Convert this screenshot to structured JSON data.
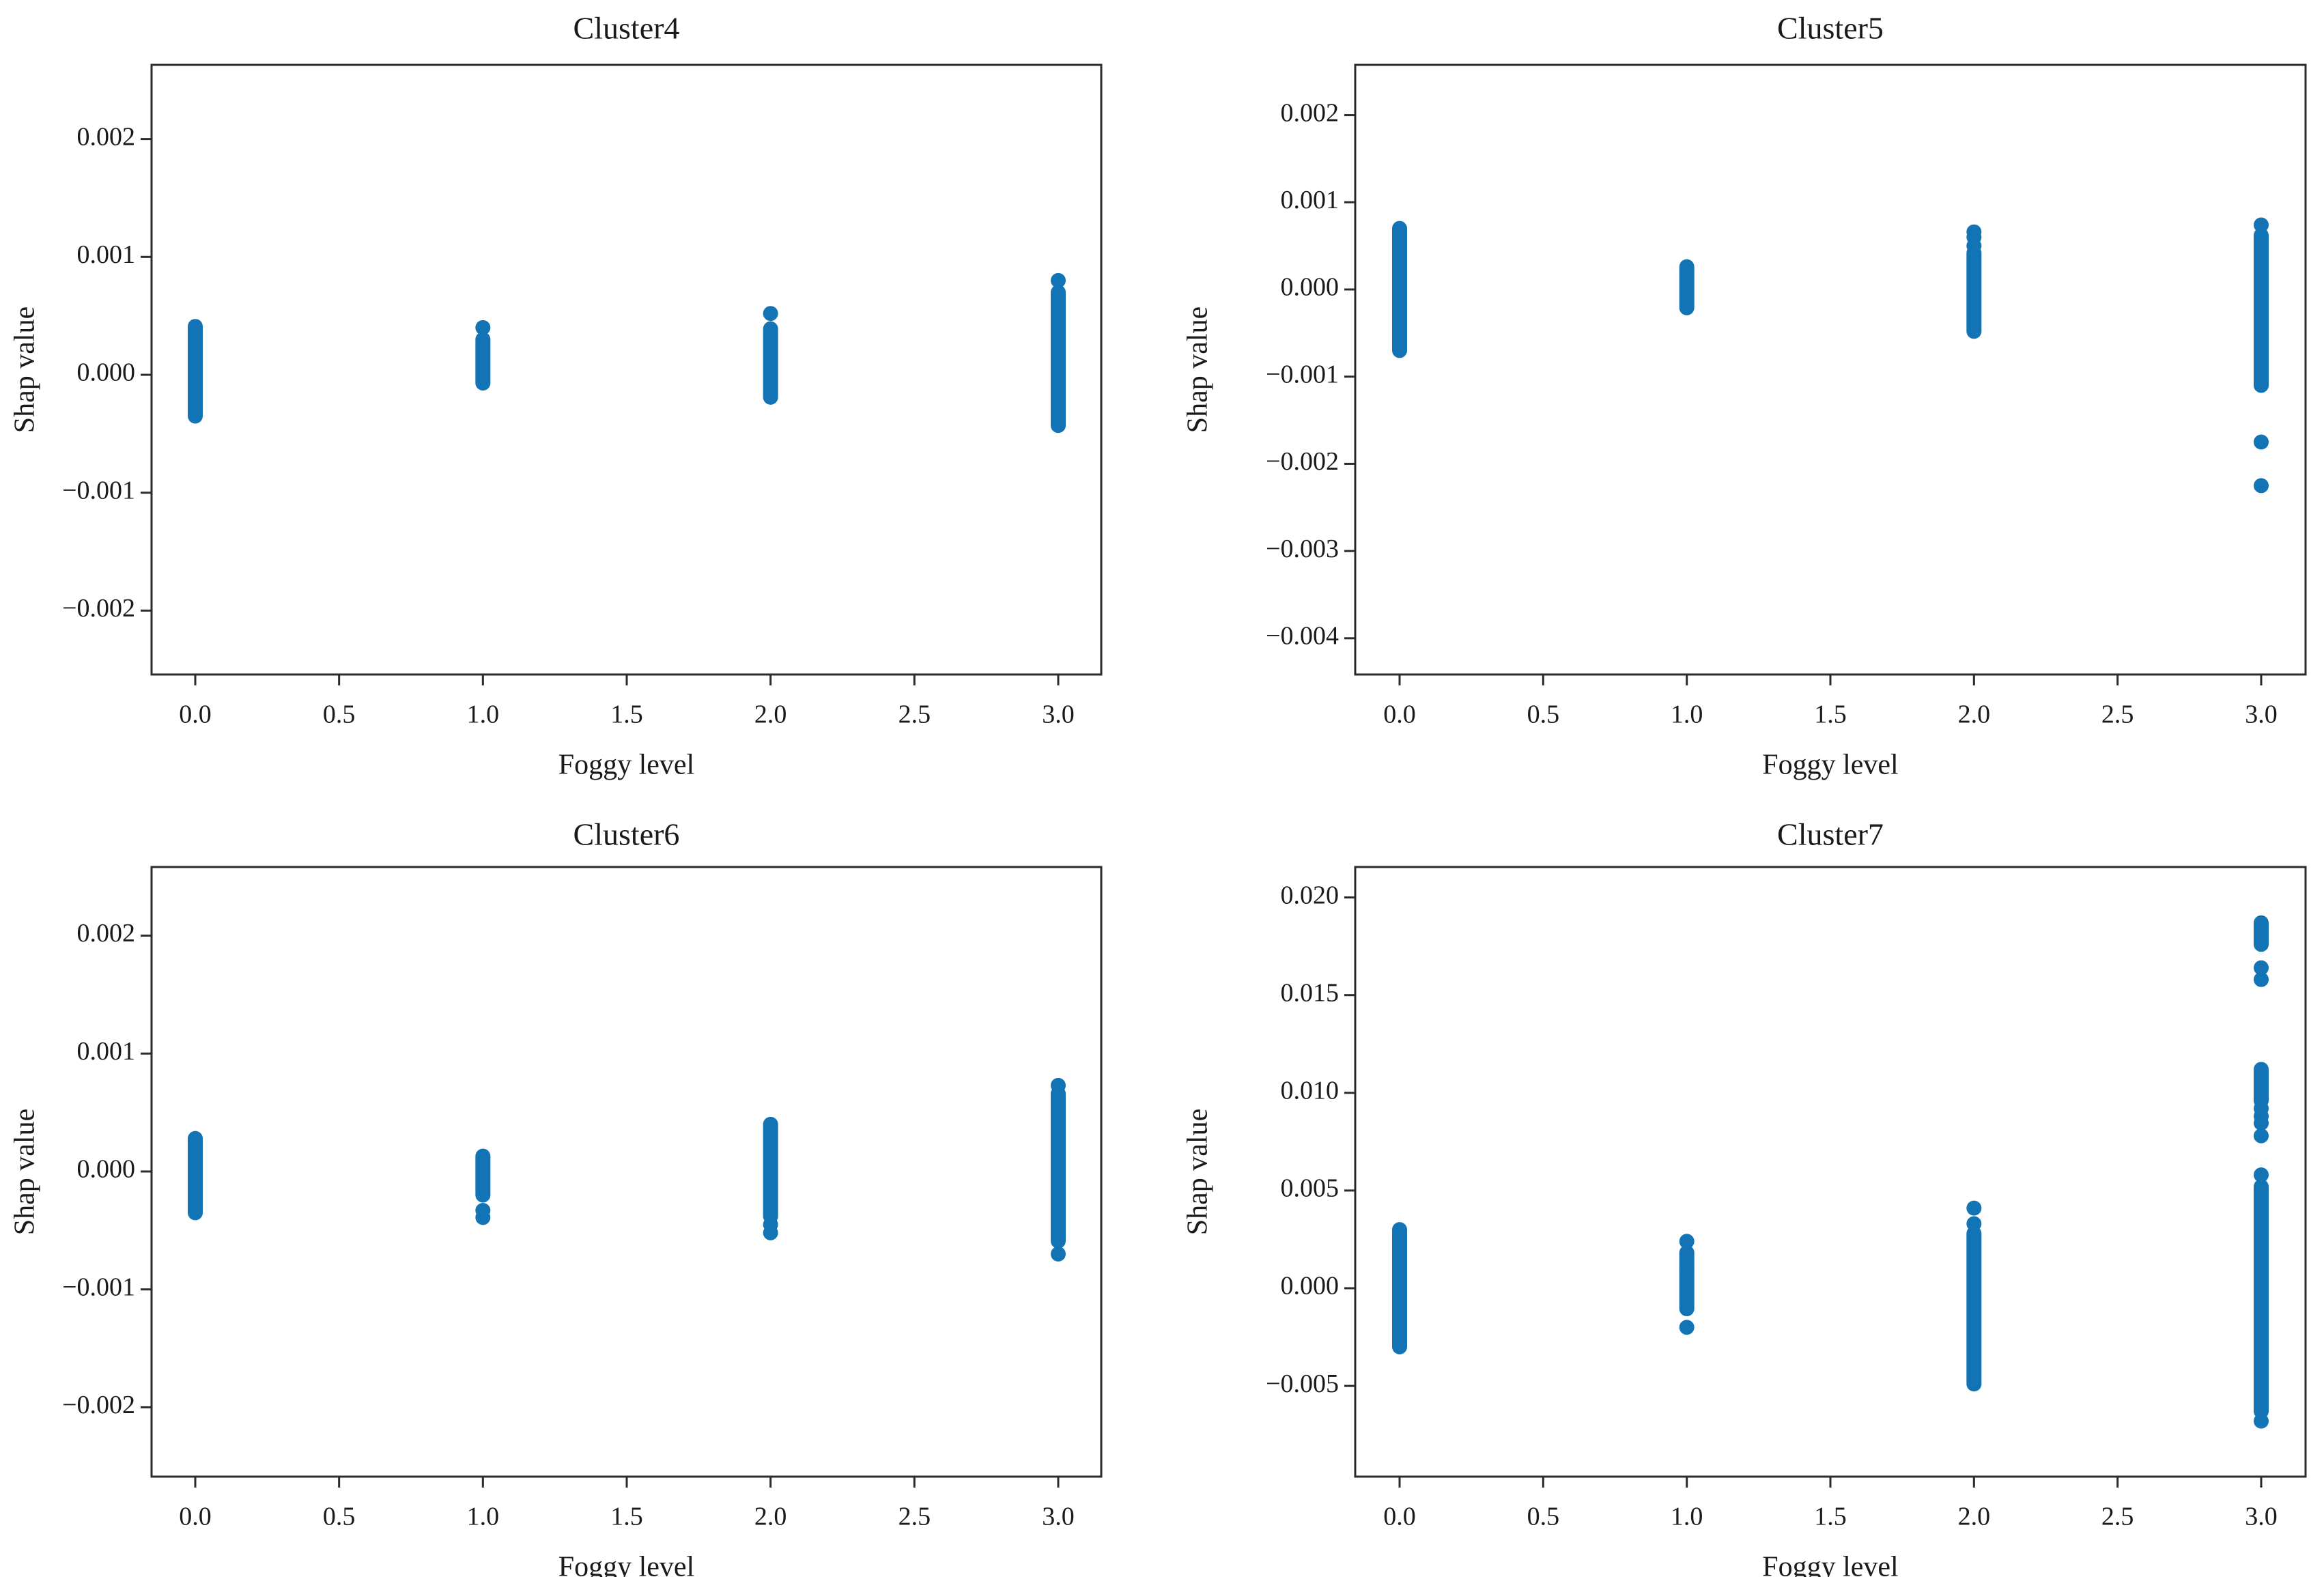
{
  "figure": {
    "background": "#ffffff",
    "marker_color": "#1273b5",
    "spine_color": "#2b2b2b",
    "text_color": "#1a1a1a"
  },
  "chart_data": [
    {
      "id": "cluster4",
      "type": "scatter",
      "title": "Cluster4",
      "xlabel": "Foggy level",
      "ylabel": "Shap value",
      "xlim": [
        -0.15,
        3.15
      ],
      "ylim": [
        -0.002542,
        0.002629
      ],
      "grid": false,
      "xticks": [
        {
          "v": 0.0,
          "label": "0.0"
        },
        {
          "v": 0.5,
          "label": "0.5"
        },
        {
          "v": 1.0,
          "label": "1.0"
        },
        {
          "v": 1.5,
          "label": "1.5"
        },
        {
          "v": 2.0,
          "label": "2.0"
        },
        {
          "v": 2.5,
          "label": "2.5"
        },
        {
          "v": 3.0,
          "label": "3.0"
        }
      ],
      "yticks": [
        {
          "v": 0.002,
          "label": "0.002"
        },
        {
          "v": 0.001,
          "label": "0.001"
        },
        {
          "v": 0.0,
          "label": "0.000"
        },
        {
          "v": -0.001,
          "label": "−0.001"
        },
        {
          "v": -0.002,
          "label": "−0.002"
        }
      ],
      "groups": [
        {
          "x": 0,
          "segments": [
            [
              -0.00035,
              0.00041
            ]
          ],
          "dots": []
        },
        {
          "x": 1,
          "segments": [
            [
              -7e-05,
              0.0003
            ]
          ],
          "dots": [
            0.0004
          ]
        },
        {
          "x": 2,
          "segments": [
            [
              -0.00019,
              0.00039
            ]
          ],
          "dots": [
            0.00052
          ]
        },
        {
          "x": 3,
          "segments": [
            [
              -0.00043,
              0.0007
            ]
          ],
          "dots": [
            0.0008
          ]
        }
      ]
    },
    {
      "id": "cluster5",
      "type": "scatter",
      "title": "Cluster5",
      "xlabel": "Foggy level",
      "ylabel": "Shap value",
      "xlim": [
        -0.15,
        3.15
      ],
      "ylim": [
        -0.004416,
        0.002576
      ],
      "grid": false,
      "xticks": [
        {
          "v": 0.0,
          "label": "0.0"
        },
        {
          "v": 0.5,
          "label": "0.5"
        },
        {
          "v": 1.0,
          "label": "1.0"
        },
        {
          "v": 1.5,
          "label": "1.5"
        },
        {
          "v": 2.0,
          "label": "2.0"
        },
        {
          "v": 2.5,
          "label": "2.5"
        },
        {
          "v": 3.0,
          "label": "3.0"
        }
      ],
      "yticks": [
        {
          "v": 0.002,
          "label": "0.002"
        },
        {
          "v": 0.001,
          "label": "0.001"
        },
        {
          "v": 0.0,
          "label": "0.000"
        },
        {
          "v": -0.001,
          "label": "−0.001"
        },
        {
          "v": -0.002,
          "label": "−0.002"
        },
        {
          "v": -0.003,
          "label": "−0.003"
        },
        {
          "v": -0.004,
          "label": "−0.004"
        }
      ],
      "groups": [
        {
          "x": 0,
          "segments": [
            [
              -0.0007,
              0.0007
            ]
          ],
          "dots": []
        },
        {
          "x": 1,
          "segments": [
            [
              -0.00021,
              0.00026
            ]
          ],
          "dots": []
        },
        {
          "x": 2,
          "segments": [
            [
              -0.00048,
              0.00042
            ]
          ],
          "dots": [
            0.0005,
            0.0006,
            0.00066
          ]
        },
        {
          "x": 3,
          "segments": [
            [
              -0.0011,
              0.00062
            ]
          ],
          "dots": [
            0.00074,
            -0.00175,
            -0.00225
          ]
        }
      ]
    },
    {
      "id": "cluster6",
      "type": "scatter",
      "title": "Cluster6",
      "xlabel": "Foggy level",
      "ylabel": "Shap value",
      "xlim": [
        -0.15,
        3.15
      ],
      "ylim": [
        -0.002588,
        0.002582
      ],
      "grid": false,
      "xticks": [
        {
          "v": 0.0,
          "label": "0.0"
        },
        {
          "v": 0.5,
          "label": "0.5"
        },
        {
          "v": 1.0,
          "label": "1.0"
        },
        {
          "v": 1.5,
          "label": "1.5"
        },
        {
          "v": 2.0,
          "label": "2.0"
        },
        {
          "v": 2.5,
          "label": "2.5"
        },
        {
          "v": 3.0,
          "label": "3.0"
        }
      ],
      "yticks": [
        {
          "v": 0.002,
          "label": "0.002"
        },
        {
          "v": 0.001,
          "label": "0.001"
        },
        {
          "v": 0.0,
          "label": "0.000"
        },
        {
          "v": -0.001,
          "label": "−0.001"
        },
        {
          "v": -0.002,
          "label": "−0.002"
        }
      ],
      "groups": [
        {
          "x": 0,
          "segments": [
            [
              -0.00035,
              0.00028
            ]
          ],
          "dots": []
        },
        {
          "x": 1,
          "segments": [
            [
              -0.0002,
              0.00013
            ]
          ],
          "dots": [
            -0.00033,
            -0.00039
          ]
        },
        {
          "x": 2,
          "segments": [
            [
              -0.00038,
              0.0004
            ]
          ],
          "dots": [
            -0.00045,
            -0.00052
          ]
        },
        {
          "x": 3,
          "segments": [
            [
              -0.00059,
              0.00066
            ]
          ],
          "dots": [
            0.00073,
            -0.0007
          ]
        }
      ]
    },
    {
      "id": "cluster7",
      "type": "scatter",
      "title": "Cluster7",
      "xlabel": "Foggy level",
      "ylabel": "Shap value",
      "xlim": [
        -0.15,
        3.15
      ],
      "ylim": [
        -0.009644,
        0.021558
      ],
      "grid": false,
      "xticks": [
        {
          "v": 0.0,
          "label": "0.0"
        },
        {
          "v": 0.5,
          "label": "0.5"
        },
        {
          "v": 1.0,
          "label": "1.0"
        },
        {
          "v": 1.5,
          "label": "1.5"
        },
        {
          "v": 2.0,
          "label": "2.0"
        },
        {
          "v": 2.5,
          "label": "2.5"
        },
        {
          "v": 3.0,
          "label": "3.0"
        }
      ],
      "yticks": [
        {
          "v": 0.02,
          "label": "0.020"
        },
        {
          "v": 0.015,
          "label": "0.015"
        },
        {
          "v": 0.01,
          "label": "0.010"
        },
        {
          "v": 0.005,
          "label": "0.005"
        },
        {
          "v": 0.0,
          "label": "0.000"
        },
        {
          "v": -0.005,
          "label": "−0.005"
        }
      ],
      "groups": [
        {
          "x": 0,
          "segments": [
            [
              -0.003,
              0.003
            ]
          ],
          "dots": []
        },
        {
          "x": 1,
          "segments": [
            [
              -0.00105,
              0.00084
            ],
            [
              0.0009,
              0.00182
            ]
          ],
          "dots": [
            0.0024,
            -0.002
          ]
        },
        {
          "x": 2,
          "segments": [
            [
              -0.0049,
              0.0028
            ]
          ],
          "dots": [
            0.0033,
            0.0041
          ]
        },
        {
          "x": 3,
          "segments": [
            [
              -0.0063,
              0.0052
            ],
            [
              0.0096,
              0.0112
            ],
            [
              0.0176,
              0.0187
            ]
          ],
          "dots": [
            -0.0068,
            0.0058,
            0.0078,
            0.00845,
            0.0088,
            0.0092,
            0.0158,
            0.0164
          ]
        }
      ]
    }
  ]
}
